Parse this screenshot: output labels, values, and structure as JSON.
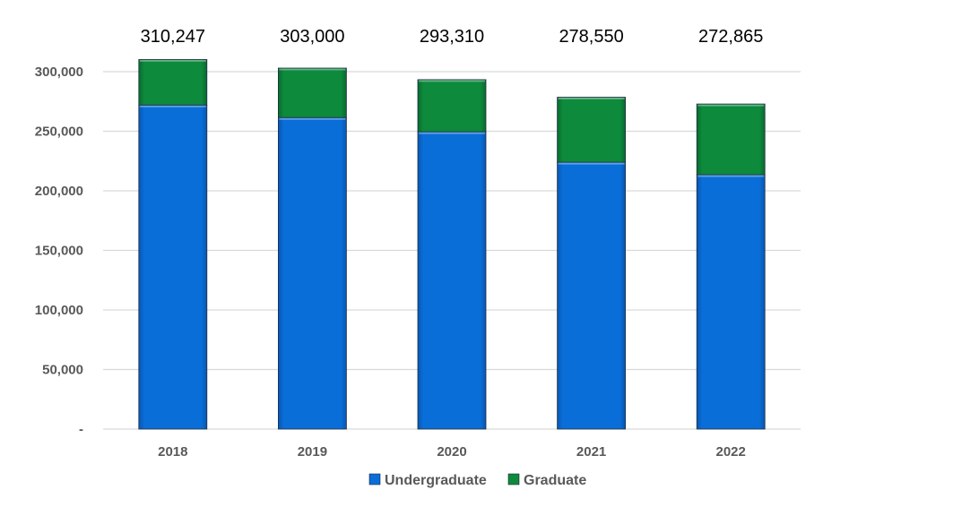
{
  "chart_data": {
    "type": "bar",
    "stacked": true,
    "categories": [
      "2018",
      "2019",
      "2020",
      "2021",
      "2022"
    ],
    "series": [
      {
        "name": "Undergraduate",
        "color": "#0a6ed8",
        "values": [
          272000,
          261500,
          249500,
          224000,
          213500
        ]
      },
      {
        "name": "Graduate",
        "color": "#0d8a3c",
        "values": [
          38247,
          41500,
          43810,
          54550,
          59365
        ]
      }
    ],
    "totals": [
      310247,
      303000,
      293310,
      278550,
      272865
    ],
    "total_labels": [
      "310,247",
      "303,000",
      "293,310",
      "278,550",
      "272,865"
    ],
    "y_ticks": [
      0,
      50000,
      100000,
      150000,
      200000,
      250000,
      300000
    ],
    "y_tick_labels": [
      "-",
      "50,000",
      "100,000",
      "150,000",
      "200,000",
      "250,000",
      "300,000"
    ],
    "ylim": [
      0,
      300000
    ],
    "grid": true,
    "legend_position": "bottom",
    "title": "",
    "xlabel": "",
    "ylabel": ""
  }
}
